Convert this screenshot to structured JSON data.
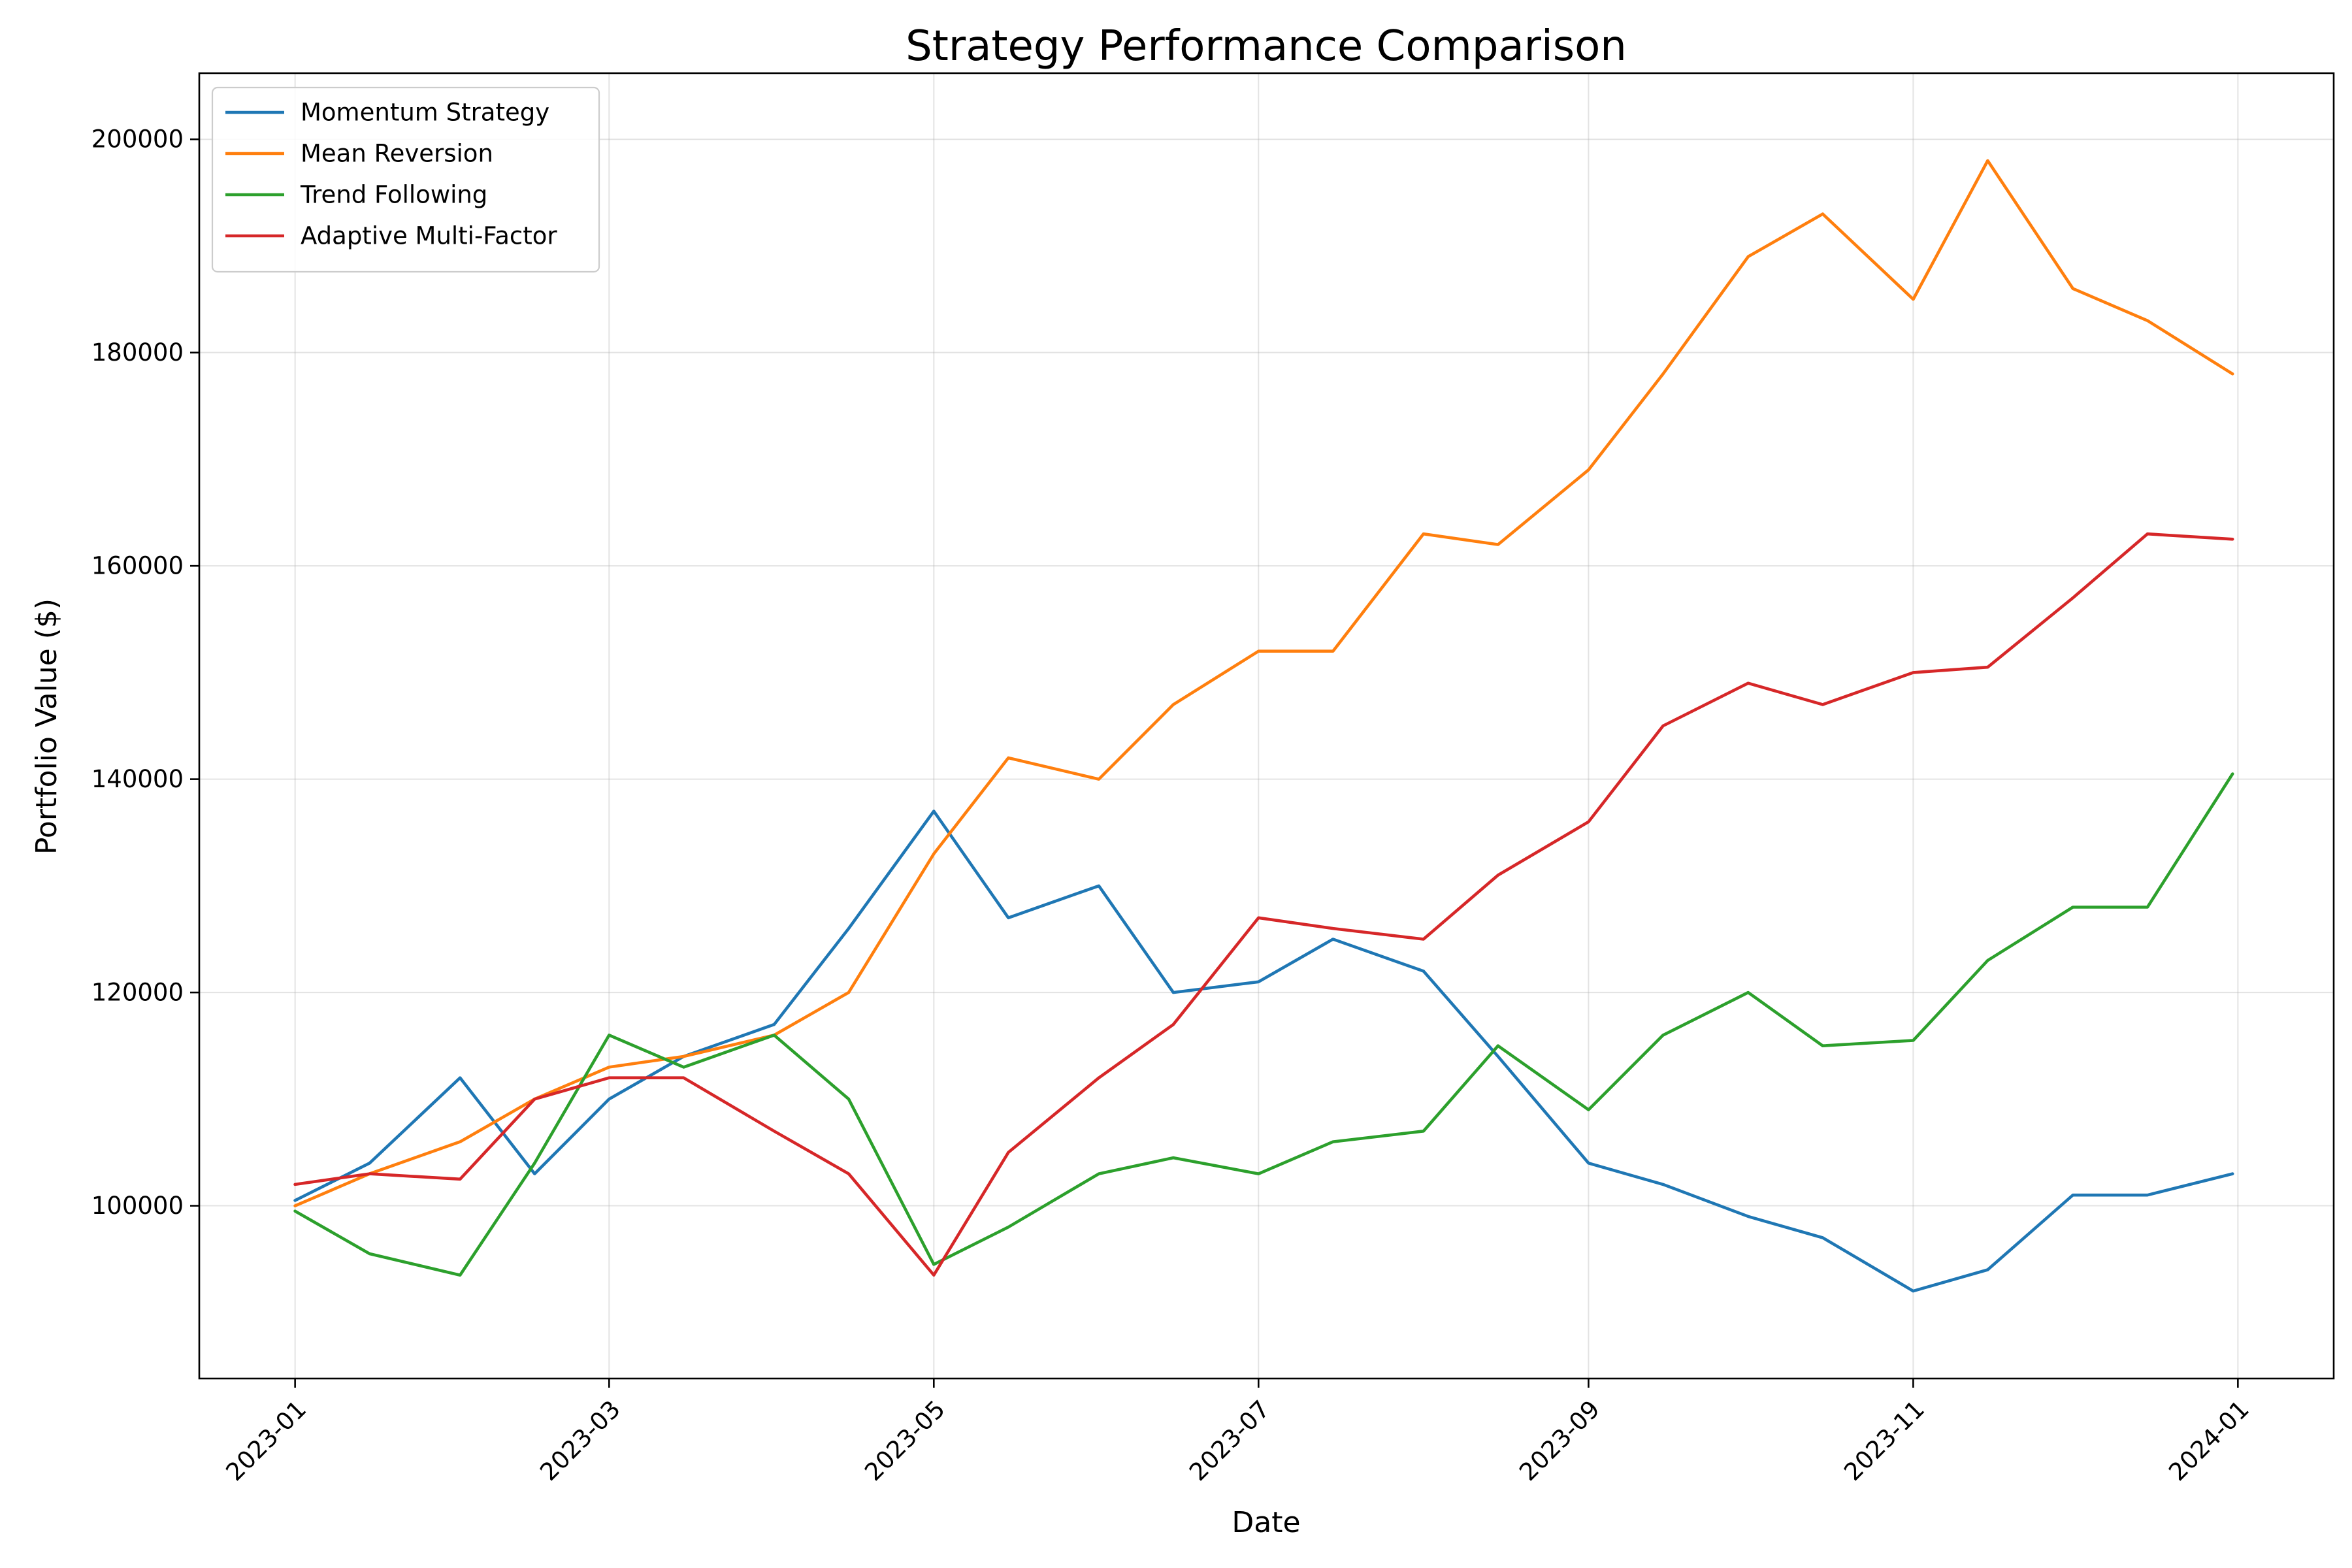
{
  "chart_data": {
    "type": "line",
    "title": "Strategy Performance Comparison",
    "xlabel": "Date",
    "ylabel": "Portfolio Value ($)",
    "x_tick_labels": [
      "2023-01",
      "2023-03",
      "2023-05",
      "2023-07",
      "2023-09",
      "2023-11",
      "2024-01"
    ],
    "x_tick_dates": [
      "2023-01-01",
      "2023-03-01",
      "2023-05-01",
      "2023-07-01",
      "2023-09-01",
      "2023-11-01",
      "2024-01-01"
    ],
    "y_ticks": [
      100000,
      120000,
      140000,
      160000,
      180000,
      200000
    ],
    "y_tick_labels": [
      "100000",
      "120000",
      "140000",
      "160000",
      "180000",
      "200000"
    ],
    "xlim": [
      "2022-12-14",
      "2024-01-19"
    ],
    "ylim": [
      83800,
      206200
    ],
    "grid": true,
    "legend_position": "upper left",
    "x": [
      "2023-01-01",
      "2023-01-15",
      "2023-02-01",
      "2023-02-15",
      "2023-03-01",
      "2023-03-15",
      "2023-04-01",
      "2023-04-15",
      "2023-05-01",
      "2023-05-15",
      "2023-06-01",
      "2023-06-15",
      "2023-07-01",
      "2023-07-15",
      "2023-08-01",
      "2023-08-15",
      "2023-09-01",
      "2023-09-15",
      "2023-10-01",
      "2023-10-15",
      "2023-11-01",
      "2023-11-15",
      "2023-12-01",
      "2023-12-15",
      "2023-12-31"
    ],
    "series": [
      {
        "name": "Momentum Strategy",
        "color": "#1f77b4",
        "values": [
          100500,
          104000,
          112000,
          103000,
          110000,
          114000,
          117000,
          126000,
          137000,
          127000,
          130000,
          120000,
          121000,
          125000,
          122000,
          114000,
          104000,
          102000,
          99000,
          97000,
          92000,
          94000,
          101000,
          101000,
          103000
        ]
      },
      {
        "name": "Mean Reversion",
        "color": "#ff7f0e",
        "values": [
          100000,
          103000,
          106000,
          110000,
          113000,
          114000,
          116000,
          120000,
          133000,
          142000,
          140000,
          147000,
          152000,
          152000,
          163000,
          162000,
          169000,
          178000,
          189000,
          193000,
          185000,
          198000,
          186000,
          183000,
          178000
        ]
      },
      {
        "name": "Trend Following",
        "color": "#2ca02c",
        "values": [
          99500,
          95500,
          93500,
          104000,
          116000,
          113000,
          116000,
          110000,
          94500,
          98000,
          103000,
          104500,
          103000,
          106000,
          107000,
          115000,
          109000,
          116000,
          120000,
          115000,
          115500,
          123000,
          128000,
          128000,
          140500
        ]
      },
      {
        "name": "Adaptive Multi-Factor",
        "color": "#d62728",
        "values": [
          102000,
          103000,
          102500,
          110000,
          112000,
          112000,
          107000,
          103000,
          93500,
          105000,
          112000,
          117000,
          127000,
          126000,
          125000,
          131000,
          136000,
          145000,
          149000,
          147000,
          150000,
          150500,
          157000,
          163000,
          162500
        ]
      }
    ]
  }
}
